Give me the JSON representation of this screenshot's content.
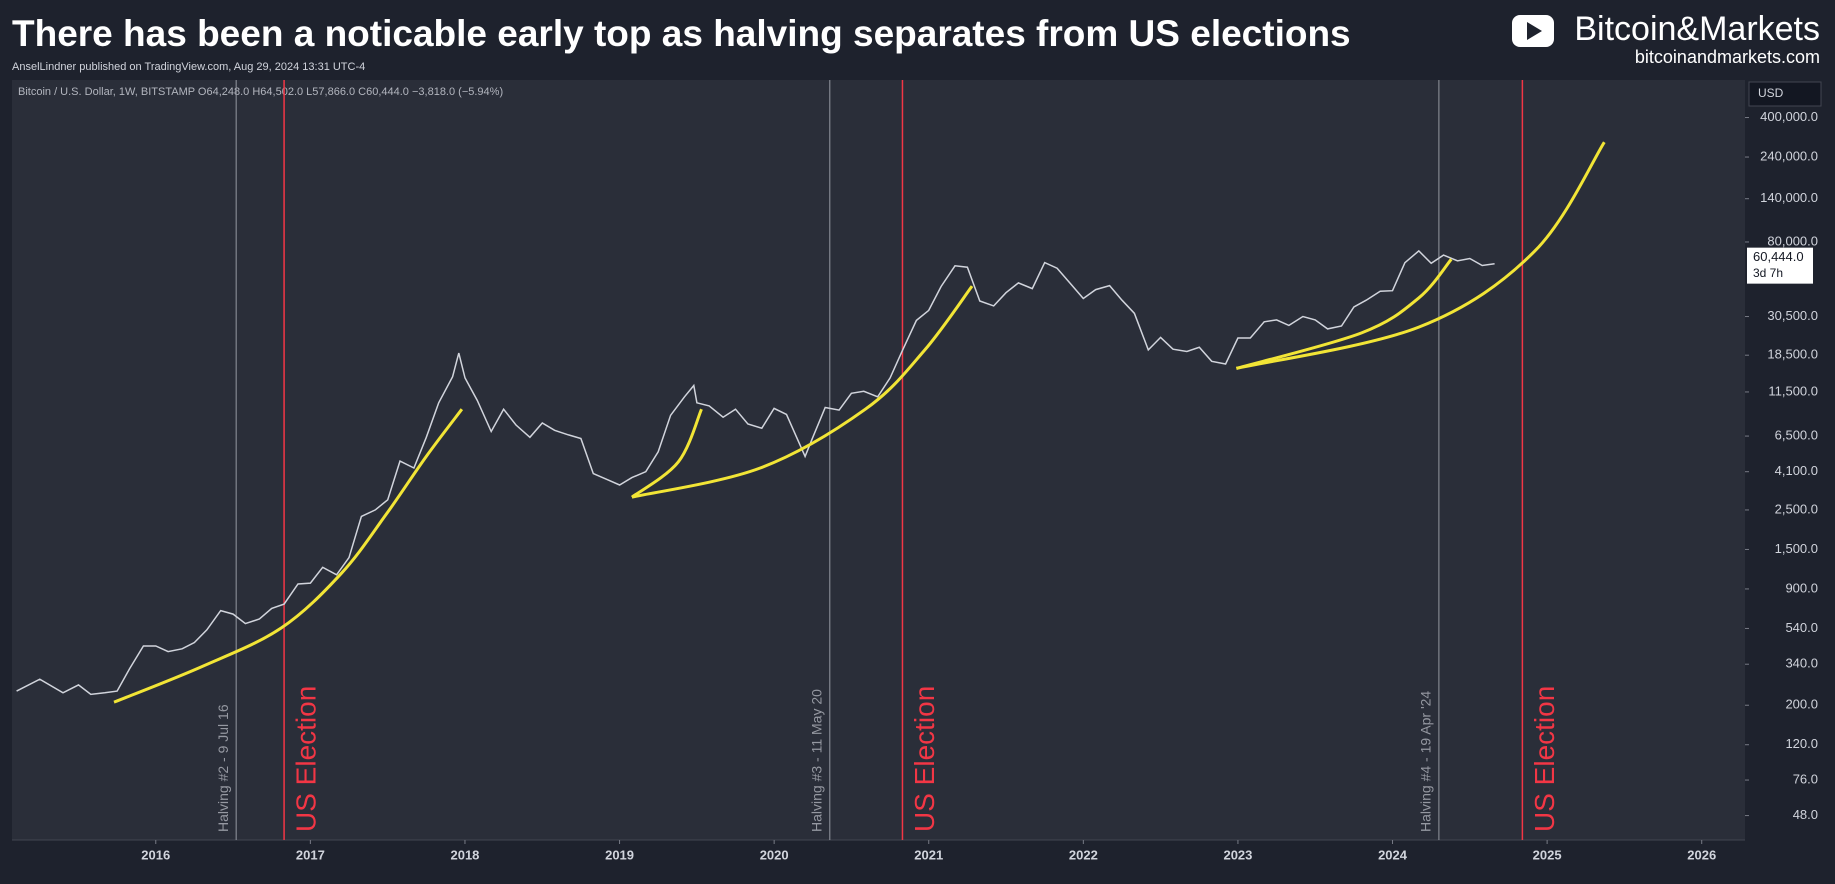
{
  "header": {
    "title": "There has been a noticable early top as halving separates from US elections",
    "subtitle": "AnselLindner published on TradingView.com, Aug 29, 2024 13:31 UTC-4",
    "brand": "Bitcoin&Markets",
    "brand_url": "bitcoinandmarkets.com"
  },
  "chart_data": {
    "type": "line",
    "info_line": "Bitcoin / U.S. Dollar, 1W, BITSTAMP O64,248.0 H64,502.0 L57,866.0 C60,444.0 −3,818.0 (−5.94%)",
    "currency": "USD",
    "log_scale": true,
    "color": "#d1d4dc",
    "x": [
      2015.1,
      2015.25,
      2015.4,
      2015.5,
      2015.58,
      2015.67,
      2015.75,
      2015.83,
      2015.92,
      2016.0,
      2016.08,
      2016.17,
      2016.25,
      2016.33,
      2016.42,
      2016.5,
      2016.58,
      2016.67,
      2016.75,
      2016.83,
      2016.92,
      2017.0,
      2017.08,
      2017.17,
      2017.25,
      2017.33,
      2017.42,
      2017.5,
      2017.58,
      2017.67,
      2017.75,
      2017.83,
      2017.92,
      2017.96,
      2018.0,
      2018.08,
      2018.17,
      2018.25,
      2018.33,
      2018.42,
      2018.5,
      2018.58,
      2018.67,
      2018.75,
      2018.83,
      2018.92,
      2019.0,
      2019.08,
      2019.17,
      2019.25,
      2019.33,
      2019.42,
      2019.48,
      2019.5,
      2019.58,
      2019.67,
      2019.75,
      2019.83,
      2019.92,
      2020.0,
      2020.08,
      2020.2,
      2020.25,
      2020.33,
      2020.42,
      2020.5,
      2020.58,
      2020.67,
      2020.75,
      2020.83,
      2020.92,
      2021.0,
      2021.08,
      2021.17,
      2021.25,
      2021.33,
      2021.42,
      2021.5,
      2021.58,
      2021.67,
      2021.75,
      2021.83,
      2021.92,
      2022.0,
      2022.08,
      2022.17,
      2022.25,
      2022.33,
      2022.42,
      2022.5,
      2022.58,
      2022.67,
      2022.75,
      2022.83,
      2022.92,
      2023.0,
      2023.08,
      2023.17,
      2023.25,
      2023.33,
      2023.42,
      2023.5,
      2023.58,
      2023.67,
      2023.75,
      2023.83,
      2023.92,
      2024.0,
      2024.08,
      2024.17,
      2024.25,
      2024.33,
      2024.42,
      2024.5,
      2024.58,
      2024.66
    ],
    "values": [
      240,
      280,
      235,
      260,
      230,
      235,
      240,
      320,
      430,
      430,
      400,
      415,
      450,
      530,
      680,
      650,
      575,
      610,
      700,
      740,
      960,
      970,
      1190,
      1080,
      1350,
      2300,
      2500,
      2850,
      4700,
      4300,
      6400,
      10000,
      14000,
      19000,
      13800,
      10300,
      6900,
      9200,
      7500,
      6400,
      7700,
      7000,
      6600,
      6300,
      4000,
      3700,
      3450,
      3800,
      4100,
      5300,
      8500,
      10800,
      12500,
      10000,
      9600,
      8300,
      9200,
      7600,
      7200,
      9300,
      8600,
      5000,
      6400,
      9400,
      9100,
      11300,
      11600,
      10800,
      13800,
      19700,
      29000,
      33000,
      45000,
      58800,
      57700,
      37300,
      35000,
      41500,
      47100,
      43800,
      61300,
      57000,
      46300,
      38500,
      43200,
      45500,
      37700,
      31800,
      19800,
      23300,
      20000,
      19400,
      20500,
      17100,
      16500,
      23100,
      23100,
      28500,
      29200,
      27200,
      30500,
      29200,
      26000,
      27000,
      34500,
      37700,
      42300,
      42600,
      61200,
      71300,
      60700,
      67500,
      62700,
      64600,
      59000,
      60444
    ],
    "last_price": {
      "value": 60444,
      "label": "60,444.0"
    },
    "countdown": "3d 7h",
    "curve_color": "#f2e536",
    "curves": [
      {
        "x": [
          2015.73,
          2016.3,
          2016.81,
          2017.2,
          2017.49,
          2017.75,
          2017.98
        ],
        "values": [
          208,
          330,
          542,
          1100,
          2360,
          5000,
          9200
        ]
      },
      {
        "x": [
          2019.08,
          2019.38,
          2019.53
        ],
        "values": [
          2950,
          4650,
          9200
        ]
      },
      {
        "x": [
          2019.08,
          2019.91,
          2020.59,
          2020.97,
          2021.28
        ],
        "values": [
          2950,
          4300,
          9200,
          19600,
          45200
        ]
      },
      {
        "x": [
          2022.99,
          2023.8,
          2024.17,
          2024.38
        ],
        "values": [
          15600,
          24700,
          38800,
          64000
        ]
      },
      {
        "x": [
          2022.99,
          2024.17,
          2024.92,
          2025.37
        ],
        "values": [
          15600,
          26600,
          71100,
          291000
        ]
      }
    ],
    "annotations": [
      {
        "text": "Halving #2 - 9 Jul 16",
        "x": 2016.52,
        "color": "#9598a1"
      },
      {
        "text": "US Election",
        "x": 2016.83,
        "color": "#f23645"
      },
      {
        "text": "Halving #3 - 11 May 20",
        "x": 2020.36,
        "color": "#9598a1"
      },
      {
        "text": "US Election",
        "x": 2020.83,
        "color": "#f23645"
      },
      {
        "text": "Halving #4 - 19 Apr '24",
        "x": 2024.3,
        "color": "#9598a1"
      },
      {
        "text": "US Election",
        "x": 2024.84,
        "color": "#f23645"
      }
    ],
    "xlim": [
      2015.07,
      2026.28
    ],
    "xticks": [
      2016,
      2017,
      2018,
      2019,
      2020,
      2021,
      2022,
      2023,
      2024,
      2025,
      2026
    ],
    "ylim": [
      35,
      650000
    ],
    "yticks": [
      {
        "value": 48,
        "label": "48.0"
      },
      {
        "value": 76,
        "label": "76.0"
      },
      {
        "value": 120,
        "label": "120.0"
      },
      {
        "value": 200,
        "label": "200.0"
      },
      {
        "value": 340,
        "label": "340.0"
      },
      {
        "value": 540,
        "label": "540.0"
      },
      {
        "value": 900,
        "label": "900.0"
      },
      {
        "value": 1500,
        "label": "1,500.0"
      },
      {
        "value": 2500,
        "label": "2,500.0"
      },
      {
        "value": 4100,
        "label": "4,100.0"
      },
      {
        "value": 6500,
        "label": "6,500.0"
      },
      {
        "value": 11500,
        "label": "11,500.0"
      },
      {
        "value": 18500,
        "label": "18,500.0"
      },
      {
        "value": 30500,
        "label": "30,500.0"
      },
      {
        "value": 80000,
        "label": "80,000.0"
      },
      {
        "value": 140000,
        "label": "140,000.0"
      },
      {
        "value": 240000,
        "label": "240,000.0"
      },
      {
        "value": 400000,
        "label": "400,000.0"
      }
    ]
  }
}
